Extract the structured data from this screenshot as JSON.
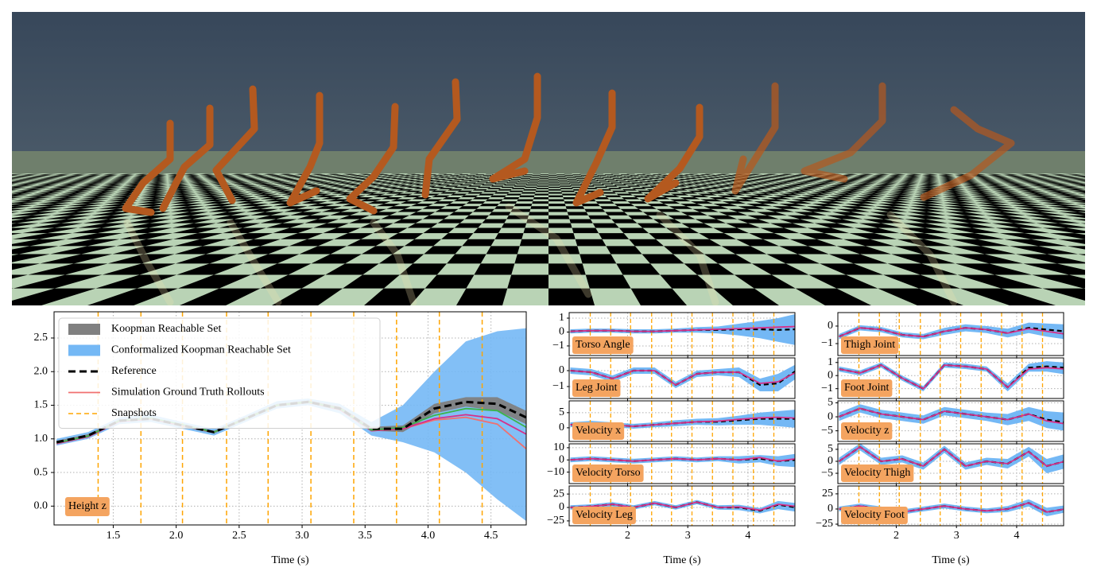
{
  "chart_data": [
    {
      "type": "line",
      "annotation": "Height z",
      "xlabel": "Time (s)",
      "legend": "upper left",
      "grid": true,
      "xlim": [
        1.03,
        4.78
      ],
      "ylim": [
        -0.28,
        2.89
      ],
      "xticks": [
        1.5,
        {
          "value": 2,
          "label": "2.0"
        },
        2.5,
        {
          "value": 3,
          "label": "3.0"
        },
        3.5,
        {
          "value": 4,
          "label": "4.0"
        },
        4.5
      ],
      "yticks": [
        {
          "value": 0,
          "label": "0.0"
        },
        0.5,
        {
          "value": 1,
          "label": "1.0"
        },
        1.5,
        {
          "value": 2,
          "label": "2.0"
        },
        2.5
      ],
      "x": [
        1.05,
        1.3,
        1.55,
        1.8,
        2.05,
        2.3,
        2.55,
        2.8,
        3.05,
        3.3,
        3.55,
        3.8,
        4.05,
        4.3,
        4.55,
        4.8
      ],
      "bands": [
        {
          "name": "Koopman Reachable Set",
          "color": "#808080",
          "lower": [
            0.93,
            1.03,
            1.25,
            1.28,
            1.18,
            1.08,
            1.28,
            1.48,
            1.53,
            1.42,
            1.12,
            1.1,
            1.38,
            1.48,
            1.42,
            1.2
          ],
          "upper": [
            0.97,
            1.07,
            1.29,
            1.32,
            1.22,
            1.12,
            1.32,
            1.52,
            1.57,
            1.48,
            1.18,
            1.2,
            1.52,
            1.62,
            1.62,
            1.4
          ]
        },
        {
          "name": "Conformalized Koopman Reachable Set",
          "color": "#74b8f5",
          "lower": [
            0.9,
            1.0,
            1.22,
            1.25,
            1.15,
            1.05,
            1.25,
            1.45,
            1.5,
            1.38,
            1.05,
            0.95,
            0.8,
            0.5,
            0.1,
            -0.25
          ],
          "upper": [
            1.0,
            1.1,
            1.32,
            1.36,
            1.25,
            1.15,
            1.35,
            1.56,
            1.6,
            1.52,
            1.25,
            1.5,
            2.0,
            2.45,
            2.6,
            2.65
          ]
        }
      ],
      "series": [
        {
          "name": "Simulation Ground Truth Rollouts",
          "color": "#f07070",
          "values": [
            0.93,
            1.03,
            1.26,
            1.3,
            1.2,
            1.1,
            1.3,
            1.5,
            1.55,
            1.44,
            1.12,
            1.15,
            1.28,
            1.32,
            1.22,
            0.82
          ]
        },
        {
          "color": "#d6308a",
          "values": [
            0.93,
            1.03,
            1.26,
            1.3,
            1.2,
            1.1,
            1.3,
            1.5,
            1.55,
            1.44,
            1.12,
            1.15,
            1.3,
            1.36,
            1.3,
            1.05
          ]
        },
        {
          "color": "#3cb44b",
          "values": [
            0.94,
            1.04,
            1.27,
            1.31,
            1.21,
            1.1,
            1.3,
            1.5,
            1.55,
            1.45,
            1.13,
            1.17,
            1.35,
            1.45,
            1.42,
            1.15
          ]
        },
        {
          "name": "Reference",
          "color": "#000000",
          "dash": true,
          "values": [
            0.95,
            1.05,
            1.27,
            1.3,
            1.2,
            1.1,
            1.3,
            1.5,
            1.55,
            1.45,
            1.15,
            1.15,
            1.45,
            1.55,
            1.52,
            1.3
          ]
        }
      ],
      "snapshots": {
        "name": "Snapshots",
        "color": "#ffa500",
        "x": [
          1.38,
          1.72,
          2.05,
          2.4,
          2.73,
          3.07,
          3.41,
          3.75,
          4.09,
          4.43
        ]
      }
    },
    {
      "type": "panels",
      "xlabel": "Time (s)",
      "grid": true,
      "xlim": [
        1.03,
        4.78
      ],
      "xticks": [
        2,
        3,
        4
      ],
      "x": [
        1.05,
        1.4,
        1.75,
        2.1,
        2.45,
        2.8,
        3.15,
        3.5,
        3.85,
        4.2,
        4.5,
        4.8
      ],
      "band_color": "#74b8f5",
      "reference_color": "#000000",
      "rollout_color": "#d6308a",
      "snapshots": {
        "color": "#ffa500",
        "x": [
          1.38,
          1.72,
          2.05,
          2.4,
          2.73,
          3.07,
          3.41,
          3.75,
          4.09,
          4.43
        ]
      },
      "panels": [
        {
          "label": "Torso Angle",
          "ylim": [
            -1.69,
            1.4
          ],
          "yticks": [
            {
              "value": -1,
              "label": "−1"
            },
            0,
            1
          ],
          "reference": [
            0.05,
            0.1,
            0.1,
            0.05,
            0.05,
            0.1,
            0.15,
            0.15,
            0.2,
            0.2,
            0.15,
            0.2
          ],
          "upper": [
            0.2,
            0.25,
            0.25,
            0.2,
            0.2,
            0.25,
            0.35,
            0.4,
            0.6,
            0.8,
            1.0,
            1.3
          ],
          "lower": [
            -0.1,
            -0.05,
            -0.05,
            -0.1,
            -0.1,
            -0.05,
            -0.05,
            -0.1,
            -0.25,
            -0.45,
            -0.7,
            -0.95
          ],
          "rollout": [
            0.05,
            0.1,
            0.1,
            0.05,
            0.05,
            0.1,
            0.15,
            0.2,
            0.25,
            0.3,
            0.35,
            0.4
          ]
        },
        {
          "label": "Leg Joint",
          "ylim": [
            -1.75,
            0.8
          ],
          "yticks": [
            {
              "value": -1,
              "label": "−1"
            },
            0
          ],
          "reference": [
            0,
            -0.1,
            -0.5,
            0,
            0,
            -0.9,
            -0.2,
            -0.1,
            -0.1,
            -0.9,
            -0.8,
            0
          ],
          "upper": [
            0.2,
            0.1,
            -0.3,
            0.2,
            0.2,
            -0.7,
            0,
            0.1,
            0.2,
            -0.5,
            -0.2,
            0.4
          ],
          "lower": [
            -0.2,
            -0.3,
            -0.7,
            -0.2,
            -0.2,
            -1.1,
            -0.4,
            -0.3,
            -0.4,
            -1.3,
            -1.3,
            -0.5
          ],
          "rollout": [
            0,
            -0.1,
            -0.5,
            0,
            0,
            -0.9,
            -0.2,
            -0.1,
            -0.1,
            -0.8,
            -0.7,
            -0.1
          ]
        },
        {
          "label": "Velocity x",
          "ylim": [
            -4.5,
            8.9
          ],
          "yticks": [
            0,
            5
          ],
          "reference": [
            1,
            1.5,
            1,
            0.5,
            1,
            1.5,
            2,
            2,
            2.5,
            3,
            3,
            3
          ],
          "upper": [
            1.8,
            2.3,
            1.8,
            1.3,
            1.8,
            2.5,
            3,
            3.2,
            4,
            5,
            5.5,
            6
          ],
          "lower": [
            0.2,
            0.7,
            0.2,
            -0.3,
            0.2,
            0.5,
            1,
            0.8,
            1,
            1,
            0.5,
            0
          ],
          "rollout": [
            1,
            1.5,
            1,
            0.5,
            1,
            1.5,
            2,
            2.2,
            2.8,
            3.3,
            3.5,
            3.2
          ]
        },
        {
          "label": "Velocity Torso",
          "ylim": [
            -19.4,
            13.2
          ],
          "yticks": [
            {
              "value": -10,
              "label": "−10"
            },
            0,
            10
          ],
          "reference": [
            0,
            1,
            0,
            -1,
            0,
            1,
            0,
            1,
            0,
            1,
            -1,
            0
          ],
          "upper": [
            2,
            3,
            2,
            1,
            2,
            3,
            2,
            3,
            3,
            4,
            3,
            5
          ],
          "lower": [
            -2,
            -1,
            -2,
            -3,
            -2,
            -1,
            -2,
            -1,
            -3,
            -2,
            -5,
            -6
          ],
          "rollout": [
            0,
            1,
            0,
            -1,
            0,
            1,
            0,
            1,
            0,
            2,
            -1,
            1
          ]
        },
        {
          "label": "Velocity Leg",
          "ylim": [
            -34,
            40
          ],
          "yticks": [
            {
              "value": -25,
              "label": "−25"
            },
            0,
            25
          ],
          "reference": [
            0,
            2,
            6,
            0,
            8,
            0,
            10,
            0,
            0,
            -6,
            5,
            0
          ],
          "upper": [
            4,
            6,
            10,
            4,
            12,
            4,
            14,
            4,
            5,
            -1,
            12,
            8
          ],
          "lower": [
            -4,
            -2,
            2,
            -4,
            4,
            -4,
            6,
            -4,
            -5,
            -11,
            -3,
            -8
          ],
          "rollout": [
            0,
            2,
            6,
            0,
            8,
            0,
            10,
            0,
            1,
            -5,
            6,
            2
          ]
        }
      ]
    },
    {
      "type": "panels",
      "xlabel": "Time (s)",
      "grid": true,
      "xlim": [
        1.03,
        4.78
      ],
      "xticks": [
        2,
        3,
        4
      ],
      "x": [
        1.05,
        1.4,
        1.75,
        2.1,
        2.45,
        2.8,
        3.15,
        3.5,
        3.85,
        4.2,
        4.5,
        4.8
      ],
      "band_color": "#74b8f5",
      "reference_color": "#000000",
      "rollout_color": "#d6308a",
      "snapshots": {
        "color": "#ffa500",
        "x": [
          1.38,
          1.72,
          2.05,
          2.4,
          2.73,
          3.07,
          3.41,
          3.75,
          4.09,
          4.43
        ]
      },
      "panels": [
        {
          "label": "Thigh Joint",
          "ylim": [
            -1.68,
            0.77
          ],
          "yticks": [
            {
              "value": -1,
              "label": "−1"
            },
            0
          ],
          "reference": [
            -0.6,
            -0.1,
            -0.2,
            -0.5,
            -0.6,
            -0.3,
            -0.1,
            -0.2,
            -0.4,
            -0.1,
            -0.2,
            -0.3
          ],
          "upper": [
            -0.45,
            0.05,
            -0.05,
            -0.35,
            -0.45,
            -0.1,
            0.1,
            0,
            -0.15,
            0.2,
            0.15,
            0.1
          ],
          "lower": [
            -0.75,
            -0.25,
            -0.35,
            -0.65,
            -0.75,
            -0.5,
            -0.3,
            -0.4,
            -0.65,
            -0.4,
            -0.6,
            -0.75
          ],
          "rollout": [
            -0.6,
            -0.1,
            -0.2,
            -0.5,
            -0.6,
            -0.3,
            -0.1,
            -0.2,
            -0.4,
            -0.15,
            -0.3,
            -0.45
          ]
        },
        {
          "label": "Foot Joint",
          "ylim": [
            -1.75,
            1.35
          ],
          "yticks": [
            {
              "value": -1,
              "label": "−1"
            },
            0,
            1
          ],
          "reference": [
            0.5,
            0.2,
            0.8,
            -0.2,
            -1,
            0.8,
            0.7,
            0.5,
            -0.9,
            0.6,
            0.7,
            0.6
          ],
          "upper": [
            0.7,
            0.4,
            1,
            0,
            -0.8,
            1,
            0.9,
            0.7,
            -0.6,
            0.9,
            1.1,
            1
          ],
          "lower": [
            0.3,
            0,
            0.6,
            -0.4,
            -1.2,
            0.6,
            0.5,
            0.3,
            -1.2,
            0.3,
            0.3,
            0.1
          ],
          "rollout": [
            0.5,
            0.2,
            0.8,
            -0.2,
            -1,
            0.8,
            0.7,
            0.5,
            -0.9,
            0.5,
            0.6,
            0.5
          ]
        },
        {
          "label": "Velocity z",
          "ylim": [
            -8.8,
            5.7
          ],
          "yticks": [
            {
              "value": -5,
              "label": "−5"
            },
            0,
            5
          ],
          "reference": [
            0,
            3,
            1,
            0,
            -1,
            2,
            1,
            0,
            -1,
            1,
            -1,
            -2
          ],
          "upper": [
            1.5,
            4.5,
            2.5,
            1.5,
            0.5,
            3.5,
            2.5,
            1.5,
            1,
            3.5,
            2,
            1.5
          ],
          "lower": [
            -1.5,
            1.5,
            -0.5,
            -1.5,
            -2.5,
            0.5,
            -0.5,
            -1.5,
            -3,
            -1.5,
            -4,
            -5
          ],
          "rollout": [
            0,
            3,
            1,
            0,
            -1,
            2,
            1,
            0,
            -1,
            1,
            -1.5,
            -2.5
          ]
        },
        {
          "label": "Velocity Thigh",
          "ylim": [
            -9.3,
            7.3
          ],
          "yticks": [
            {
              "value": -5,
              "label": "−5"
            },
            0,
            5
          ],
          "reference": [
            0,
            6,
            0,
            1,
            -2,
            5,
            -2,
            0,
            -1,
            4,
            -2,
            0
          ],
          "upper": [
            1.5,
            7.5,
            1.5,
            2.5,
            -0.5,
            6.5,
            -0.5,
            1.5,
            1,
            6,
            1,
            3
          ],
          "lower": [
            -1.5,
            4.5,
            -1.5,
            -0.5,
            -3.5,
            3.5,
            -3.5,
            -1.5,
            -3,
            2,
            -5,
            -3
          ],
          "rollout": [
            0,
            6,
            0,
            1,
            -2,
            5,
            -2,
            0,
            -1,
            4,
            -2,
            0
          ]
        },
        {
          "label": "Velocity Foot",
          "ylim": [
            -27.6,
            38
          ],
          "yticks": [
            {
              "value": -25,
              "label": "−25"
            },
            0,
            25
          ],
          "reference": [
            0,
            5,
            0,
            -5,
            0,
            5,
            0,
            -3,
            0,
            10,
            -5,
            0
          ],
          "upper": [
            4,
            9,
            4,
            -1,
            4,
            9,
            4,
            1,
            5,
            16,
            2,
            6
          ],
          "lower": [
            -4,
            1,
            -4,
            -9,
            -4,
            1,
            -4,
            -7,
            -5,
            4,
            -12,
            -6
          ],
          "rollout": [
            0,
            5,
            0,
            -5,
            0,
            5,
            0,
            -3,
            0,
            10,
            -5,
            0
          ]
        }
      ]
    }
  ]
}
